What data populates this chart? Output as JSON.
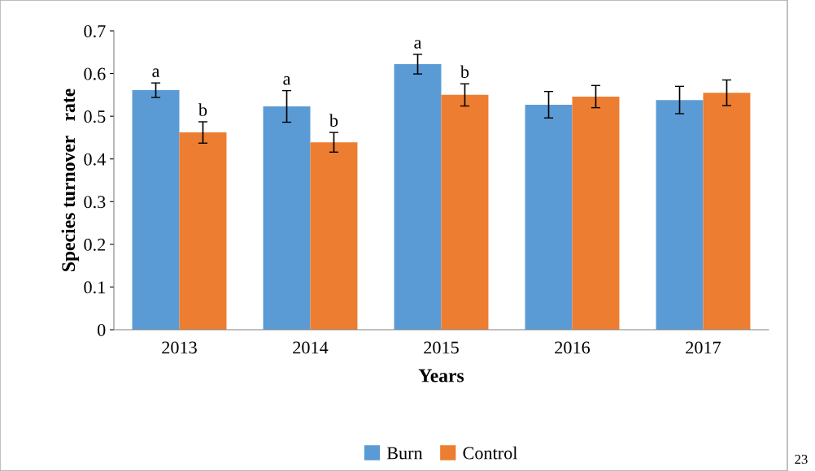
{
  "chart_data": {
    "type": "bar",
    "xlabel": "Years",
    "ylabel": "Species turnover   rate",
    "categories": [
      "2013",
      "2014",
      "2015",
      "2016",
      "2017"
    ],
    "series": [
      {
        "name": "Burn",
        "color": "#5b9bd5",
        "values": [
          0.561,
          0.523,
          0.622,
          0.527,
          0.538
        ],
        "errors": [
          0.017,
          0.037,
          0.023,
          0.031,
          0.032
        ],
        "value_labels": [
          "a",
          "a",
          "a",
          null,
          null
        ]
      },
      {
        "name": "Control",
        "color": "#ed7d31",
        "values": [
          0.462,
          0.439,
          0.55,
          0.546,
          0.555
        ],
        "errors": [
          0.025,
          0.023,
          0.026,
          0.026,
          0.03
        ],
        "value_labels": [
          "b",
          "b",
          "b",
          null,
          null
        ]
      }
    ],
    "ylim": [
      0,
      0.7
    ],
    "yticks": [
      0,
      0.1,
      0.2,
      0.3,
      0.4,
      0.5,
      0.6,
      0.7
    ],
    "grid": false,
    "legend": "bottom",
    "annotations": [
      "23"
    ]
  }
}
